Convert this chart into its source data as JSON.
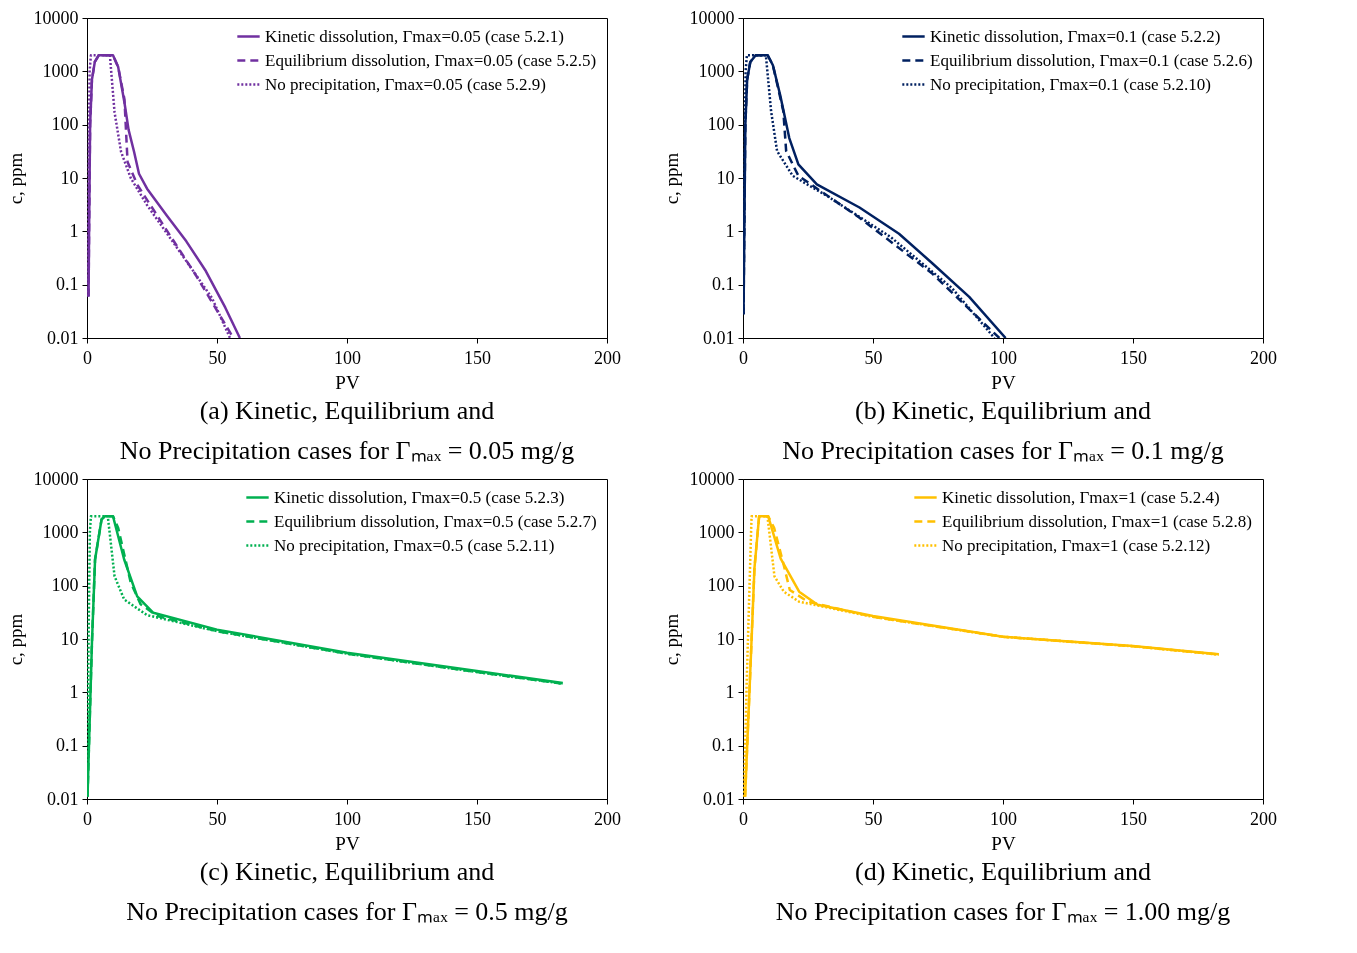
{
  "chart_data": [
    {
      "type": "line",
      "title": "(a) Kinetic, Equilibrium and\nNo Precipitation cases for Γₘₐₓ = 0.05 mg/g",
      "xlabel": "PV",
      "ylabel": "c, ppm",
      "log": "y",
      "legend": "top right",
      "xlim": [
        0,
        200
      ],
      "xticks": [
        0,
        50,
        100,
        150,
        200
      ],
      "ylim": [
        0.01,
        10000
      ],
      "yticks": [
        0.01,
        0.1,
        1,
        10,
        100,
        1000,
        10000
      ],
      "series": [
        {
          "name": "Kinetic dissolution, Γmax=0.05  (case 5.2.1)",
          "color": "#7030a0",
          "line_style": "solid",
          "x": [
            0.6,
            0.8,
            1.2,
            1.9,
            3,
            4.5,
            10,
            12,
            14.4,
            16,
            18.1,
            20,
            23.1,
            30.6,
            38.2,
            45.7,
            53.2,
            58.8
          ],
          "values": [
            0.06,
            1,
            100,
            700,
            1500,
            2000,
            2000,
            1200,
            260,
            80,
            31,
            12,
            6.3,
            2,
            0.65,
            0.18,
            0.037,
            0.01
          ]
        },
        {
          "name": "Equilibrium dissolution, Γmax=0.05  (case 5.2.5)",
          "color": "#7030a0",
          "line_style": "dashed",
          "x": [
            0.6,
            0.8,
            1.2,
            1.9,
            3,
            4.5,
            10,
            12,
            14.4,
            15.6,
            19.4,
            29.4,
            41.9,
            56.3
          ],
          "values": [
            0.06,
            1,
            100,
            700,
            1500,
            2000,
            2000,
            1200,
            300,
            20,
            7.4,
            1.3,
            0.15,
            0.01
          ]
        },
        {
          "name": "No precipitation, Γmax=0.05  (case 5.2.9)",
          "color": "#7030a0",
          "line_style": "dotted",
          "x": [
            0.3,
            0.6,
            1,
            1.5,
            8.8,
            10.6,
            13.1,
            16.9,
            23.1,
            35.6,
            48.1,
            55
          ],
          "values": [
            0.06,
            10,
            1000,
            2000,
            2000,
            170,
            31,
            9.8,
            3.1,
            0.42,
            0.056,
            0.01
          ]
        }
      ]
    },
    {
      "type": "line",
      "title": "(b) Kinetic, Equilibrium and\nNo Precipitation cases for Γₘₐₓ = 0.1 mg/g",
      "xlabel": "PV",
      "ylabel": "c, ppm",
      "log": "y",
      "legend": "top right",
      "xlim": [
        0,
        200
      ],
      "xticks": [
        0,
        50,
        100,
        150,
        200
      ],
      "ylim": [
        0.01,
        10000
      ],
      "yticks": [
        0.01,
        0.1,
        1,
        10,
        100,
        1000,
        10000
      ],
      "series": [
        {
          "name": "Kinetic dissolution, Γmax=0.1  (case 5.2.2)",
          "color": "#002060",
          "line_style": "solid",
          "x": [
            0.2,
            0.5,
            0.9,
            1.6,
            2.8,
            4.9,
            9.5,
            11.5,
            14.3,
            17.8,
            21.3,
            28.4,
            44.8,
            60,
            72.9,
            87,
            101
          ],
          "values": [
            0.028,
            1,
            100,
            700,
            1500,
            2000,
            2000,
            1300,
            360,
            56,
            18,
            7.6,
            2.8,
            0.9,
            0.25,
            0.059,
            0.01
          ]
        },
        {
          "name": "Equilibrium dissolution, Γmax=0.1  (case 5.2.6)",
          "color": "#002060",
          "line_style": "dashed",
          "x": [
            0.2,
            0.5,
            0.9,
            1.6,
            2.8,
            4.9,
            9.5,
            11.5,
            15.5,
            16.6,
            21.3,
            44.8,
            72.9,
            98.6
          ],
          "values": [
            0.028,
            1,
            100,
            700,
            1500,
            2000,
            2000,
            1300,
            180,
            32,
            11,
            1.8,
            0.16,
            0.01
          ]
        },
        {
          "name": "No precipitation, Γmax=0.1  (case 5.2.10)",
          "color": "#002060",
          "line_style": "dotted",
          "x": [
            0.2,
            0.5,
            1,
            1.5,
            8.8,
            10.8,
            13.1,
            19.1,
            33,
            56.8,
            80.3,
            96.7
          ],
          "values": [
            0.028,
            10,
            1000,
            2000,
            2000,
            180,
            32,
            11,
            4.4,
            0.78,
            0.087,
            0.01
          ]
        }
      ]
    },
    {
      "type": "line",
      "title": "(c) Kinetic, Equilibrium and\nNo Precipitation cases for Γₘₐₓ = 0.5 mg/g",
      "xlabel": "PV",
      "ylabel": "c, ppm",
      "log": "y",
      "legend": "top right",
      "xlim": [
        0,
        200
      ],
      "xticks": [
        0,
        50,
        100,
        150,
        200
      ],
      "ylim": [
        0.01,
        10000
      ],
      "yticks": [
        0.01,
        0.1,
        1,
        10,
        100,
        1000,
        10000
      ],
      "series": [
        {
          "name": "Kinetic dissolution, Γmax=0.5  (case 5.2.3)",
          "color": "#00b050",
          "line_style": "solid",
          "x": [
            0.2,
            1.9,
            3.1,
            5.6,
            6.9,
            10,
            14.3,
            19.3,
            25.5,
            50,
            100,
            150,
            183
          ],
          "values": [
            0.011,
            8.5,
            310,
            1750,
            2000,
            2000,
            310,
            63,
            31,
            15,
            5.5,
            2.5,
            1.5
          ]
        },
        {
          "name": "Equilibrium dissolution, Γmax=0.5  (case 5.2.7)",
          "color": "#00b050",
          "line_style": "dashed",
          "x": [
            0.2,
            1.9,
            3.1,
            5.6,
            6.9,
            10,
            12,
            16.8,
            20.6,
            27,
            50,
            100,
            150,
            183
          ],
          "values": [
            0.011,
            8.5,
            310,
            1750,
            2000,
            2000,
            1200,
            115,
            45,
            27,
            14,
            5.3,
            2.4,
            1.45
          ]
        },
        {
          "name": "No precipitation, Γmax=0.5  (case 5.2.11)",
          "color": "#00b050",
          "line_style": "dotted",
          "x": [
            0.1,
            0.6,
            1.1,
            1.5,
            8,
            10.6,
            14.3,
            23.1,
            50,
            100,
            150,
            183
          ],
          "values": [
            0.011,
            10,
            1000,
            2000,
            2000,
            150,
            55,
            28,
            14,
            5.3,
            2.4,
            1.45
          ]
        }
      ]
    },
    {
      "type": "line",
      "title": "(d) Kinetic, Equilibrium and\nNo Precipitation cases for Γₘₐₓ = 1.00 mg/g",
      "xlabel": "PV",
      "ylabel": "c, ppm",
      "log": "y",
      "legend": "top right",
      "xlim": [
        0,
        200
      ],
      "xticks": [
        0,
        50,
        100,
        150,
        200
      ],
      "ylim": [
        0.01,
        10000
      ],
      "yticks": [
        0.01,
        0.1,
        1,
        10,
        100,
        1000,
        10000
      ],
      "series": [
        {
          "name": "Kinetic dissolution, Γmax=1  (case 5.2.4)",
          "color": "#ffc000",
          "line_style": "solid",
          "x": [
            0.8,
            2.6,
            4.4,
            6.2,
            9.7,
            14.5,
            21.6,
            28.7,
            50,
            100,
            150,
            183
          ],
          "values": [
            0.011,
            1.4,
            210,
            2000,
            2000,
            320,
            77,
            44,
            27,
            11,
            7.4,
            5.2
          ]
        },
        {
          "name": "Equilibrium dissolution, Γmax=1  (case 5.2.8)",
          "color": "#ffc000",
          "line_style": "dashed",
          "x": [
            0.8,
            2.6,
            4.4,
            6.2,
            9.7,
            12,
            15.7,
            18,
            25,
            50,
            100,
            150,
            183
          ],
          "values": [
            0.011,
            1.4,
            210,
            2000,
            2000,
            1200,
            240,
            83,
            50,
            26,
            11,
            7.3,
            5.1
          ]
        },
        {
          "name": "No precipitation, Γmax=1  (case 5.2.12)",
          "color": "#ffc000",
          "line_style": "dotted",
          "x": [
            0.4,
            1.4,
            3.1,
            3.3,
            9.4,
            12.1,
            15.7,
            21.6,
            50,
            100,
            150,
            183
          ],
          "values": [
            0.011,
            1.4,
            1000,
            2000,
            2000,
            150,
            77,
            50,
            26,
            11,
            7.3,
            5.1
          ]
        }
      ]
    }
  ]
}
